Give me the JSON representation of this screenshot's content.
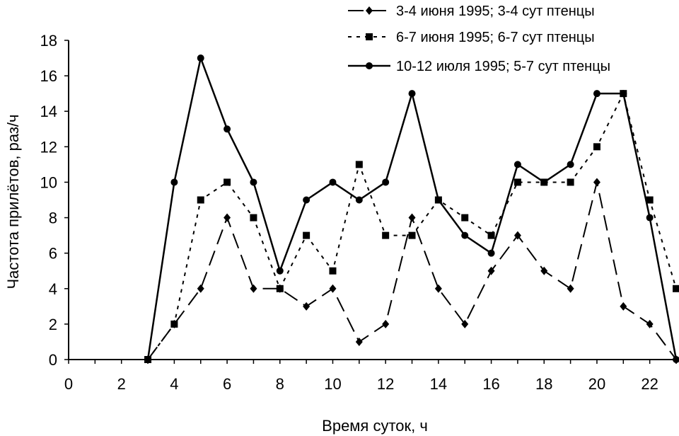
{
  "chart_data": {
    "type": "line",
    "title": "",
    "xlabel": "Время суток, ч",
    "ylabel": "Частота прилётов, раз/ч",
    "xlim": [
      0,
      23
    ],
    "ylim": [
      0,
      18
    ],
    "xticks": [
      0,
      2,
      4,
      6,
      8,
      10,
      12,
      14,
      16,
      18,
      20,
      22
    ],
    "yticks": [
      0,
      2,
      4,
      6,
      8,
      10,
      12,
      14,
      16,
      18
    ],
    "grid": false,
    "legend_position": "top-right",
    "x": [
      3,
      4,
      5,
      6,
      7,
      8,
      9,
      10,
      11,
      12,
      13,
      14,
      15,
      16,
      17,
      18,
      19,
      20,
      21,
      22,
      23
    ],
    "series": [
      {
        "name": "3-4 июня 1995; 3-4 сут птенцы",
        "marker": "diamond",
        "line_style": "long-dash",
        "color": "#000000",
        "values": [
          0,
          2,
          4,
          8,
          4,
          4,
          3,
          4,
          1,
          2,
          8,
          4,
          2,
          5,
          7,
          5,
          4,
          10,
          3,
          2,
          0
        ]
      },
      {
        "name": "6-7 июня 1995; 6-7 сут птенцы",
        "marker": "square",
        "line_style": "short-dash",
        "color": "#000000",
        "values": [
          0,
          2,
          9,
          10,
          8,
          4,
          7,
          5,
          11,
          7,
          7,
          9,
          8,
          7,
          10,
          10,
          10,
          12,
          15,
          9,
          4
        ]
      },
      {
        "name": "10-12 июля 1995; 5-7 сут птенцы",
        "marker": "circle",
        "line_style": "solid",
        "color": "#000000",
        "values": [
          0,
          10,
          17,
          13,
          10,
          5,
          9,
          10,
          9,
          10,
          15,
          9,
          7,
          6,
          11,
          10,
          11,
          15,
          15,
          8,
          0
        ]
      }
    ]
  }
}
